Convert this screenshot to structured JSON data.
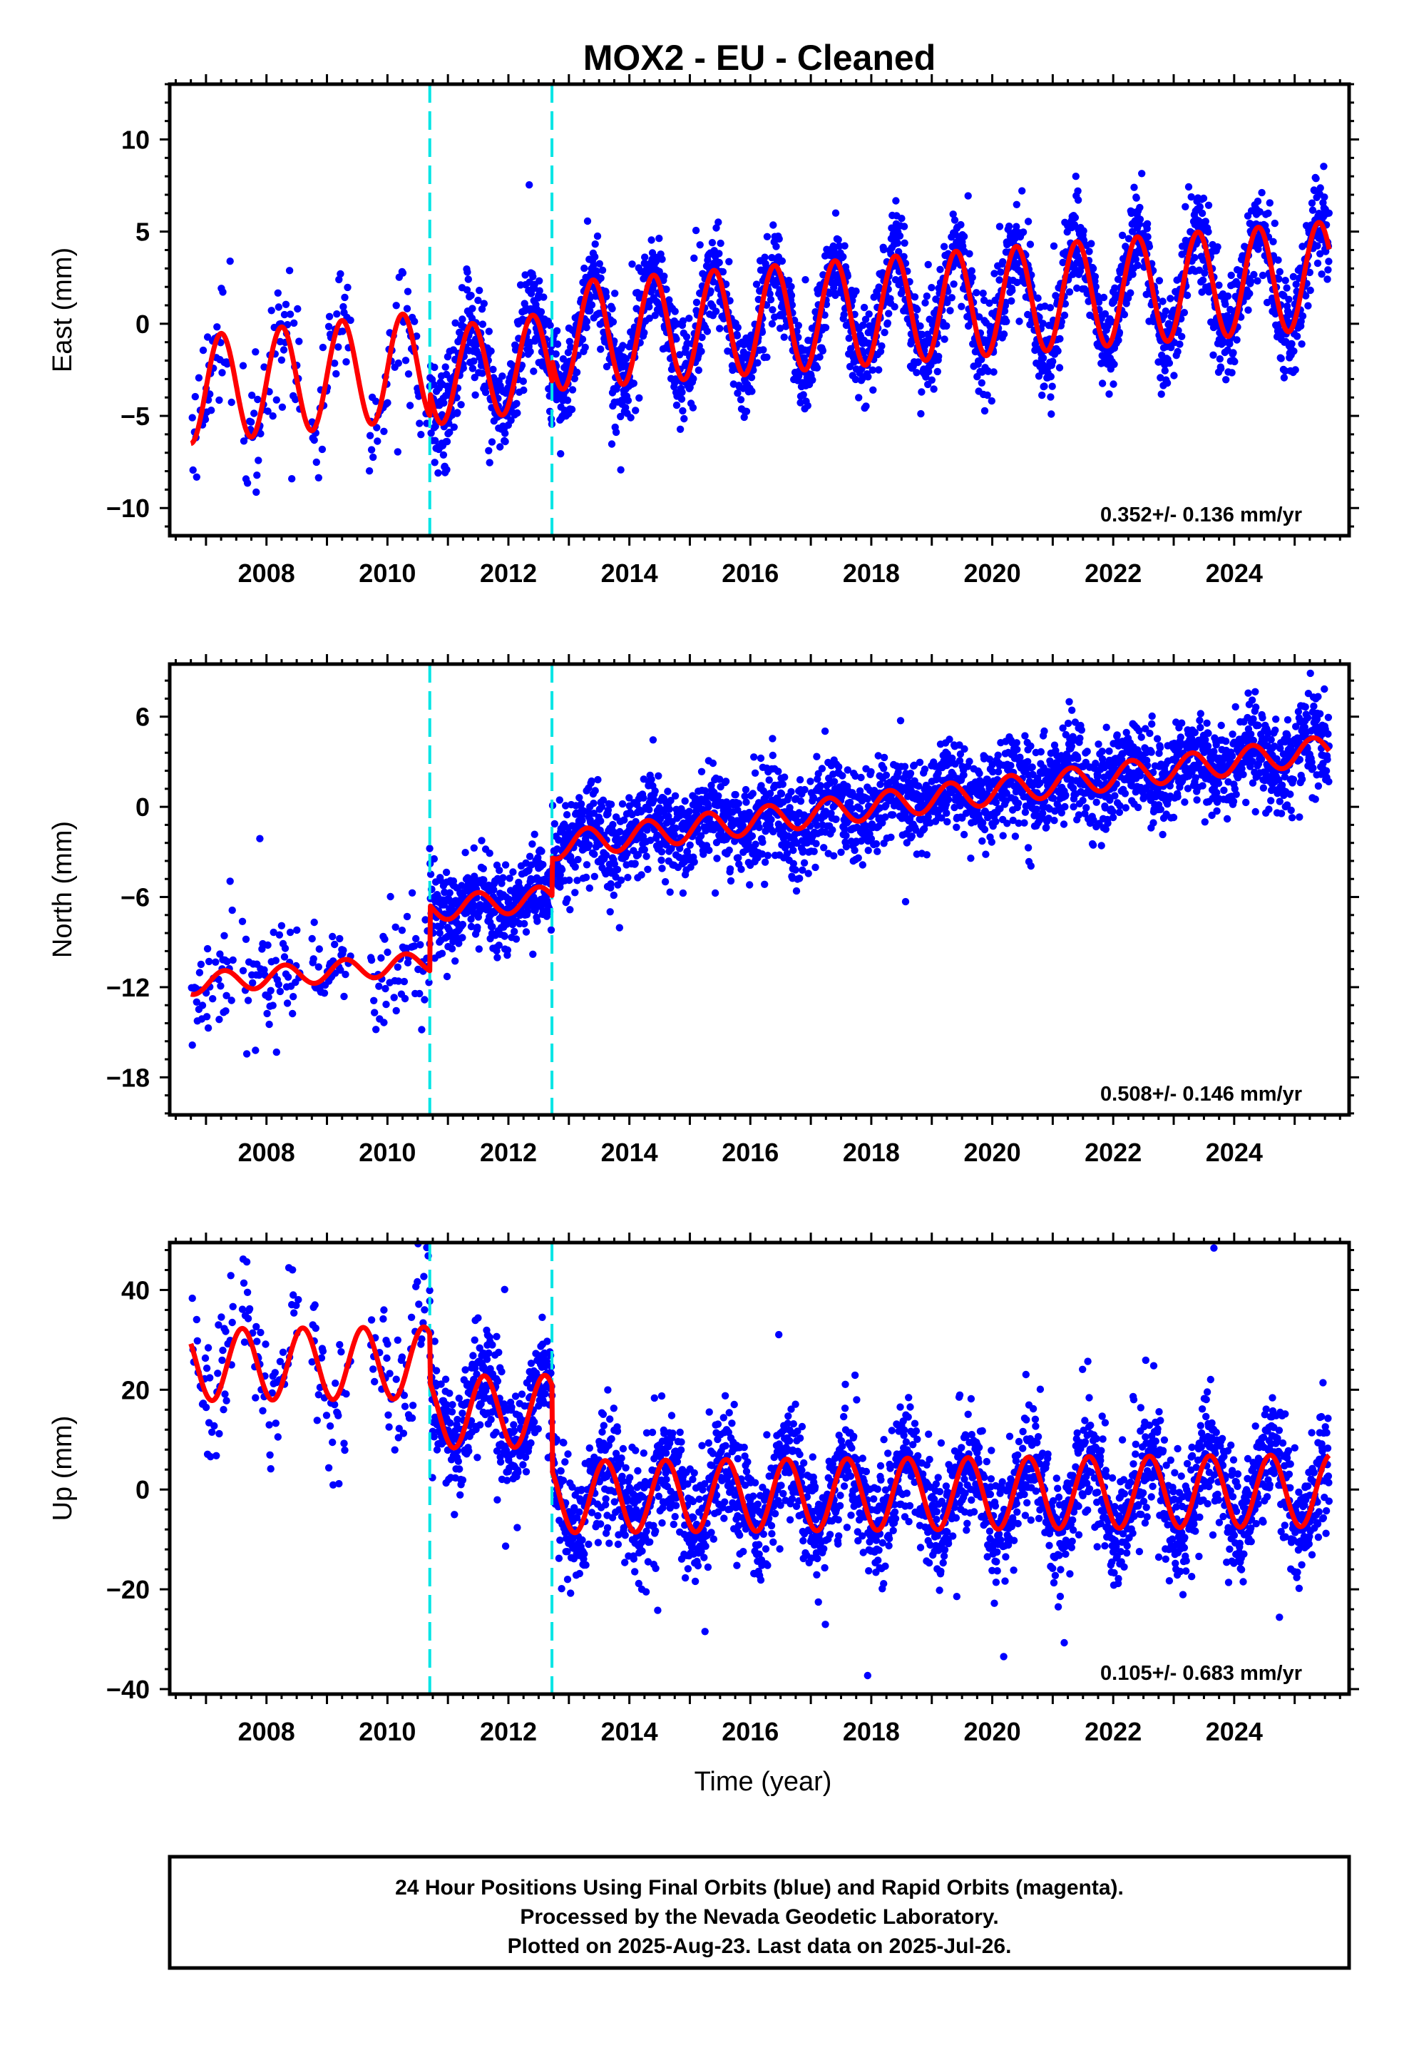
{
  "title": "MOX2  - EU - Cleaned",
  "colors": {
    "points": "#0000ff",
    "model": "#ff0000",
    "breaks": "#00e5e5",
    "frame": "#000000"
  },
  "footer": {
    "lines": [
      "24 Hour Positions Using Final Orbits (blue) and Rapid Orbits (magenta).",
      "Processed by the Nevada Geodetic Laboratory.",
      "Plotted on 2025-Aug-23. Last data on 2025-Jul-26."
    ]
  },
  "chart_data": [
    {
      "type": "scatter",
      "name": "east",
      "ylabel": "East (mm)",
      "xlabel": "",
      "xlim": [
        2006.4,
        2025.9
      ],
      "ylim": [
        -11.5,
        13
      ],
      "xticks": [
        2008,
        2010,
        2012,
        2014,
        2016,
        2018,
        2020,
        2022,
        2024
      ],
      "yticks": [
        -10,
        -5,
        0,
        5,
        10
      ],
      "rate_label": "0.352+/- 0.136 mm/yr",
      "breaks": [
        2010.7,
        2012.72
      ],
      "segments": [
        {
          "start": 2006.75,
          "end": 2010.7,
          "offset": -3.6,
          "slope": 0.35,
          "amplitude": 2.9,
          "phase_year": 2007.25,
          "gaps": [
            [
              2007.45,
              2007.6
            ],
            [
              2008.55,
              2008.75
            ],
            [
              2009.4,
              2009.7
            ]
          ]
        },
        {
          "start": 2010.7,
          "end": 2012.72,
          "offset": -2.9,
          "slope": 0.45,
          "amplitude": 2.6,
          "phase_year": 2011.4,
          "gaps": []
        },
        {
          "start": 2012.72,
          "end": 2025.57,
          "offset": -0.7,
          "slope": 0.26,
          "amplitude": 2.9,
          "phase_year": 2013.4,
          "gaps": []
        }
      ],
      "scatter_sd": 1.3,
      "model_values": [
        [
          2006.75,
          -7.0
        ],
        [
          2007.3,
          -1.0
        ],
        [
          2007.8,
          -6.9
        ],
        [
          2008.3,
          -0.7
        ],
        [
          2008.8,
          -6.5
        ],
        [
          2009.35,
          -0.4
        ],
        [
          2009.85,
          -6.3
        ],
        [
          2010.4,
          0.0
        ],
        [
          2010.75,
          -6.0
        ],
        [
          2011.4,
          -0.3
        ],
        [
          2011.9,
          -5.8
        ],
        [
          2012.4,
          0.0
        ],
        [
          2012.8,
          -4.0
        ],
        [
          2013.4,
          2.3
        ],
        [
          2014.4,
          2.6
        ],
        [
          2015.4,
          3.0
        ],
        [
          2016.4,
          3.2
        ],
        [
          2017.4,
          3.6
        ],
        [
          2018.4,
          4.0
        ],
        [
          2019.4,
          4.4
        ],
        [
          2020.4,
          4.7
        ],
        [
          2021.4,
          5.1
        ],
        [
          2022.4,
          5.4
        ],
        [
          2023.4,
          5.8
        ],
        [
          2024.4,
          6.1
        ],
        [
          2025.4,
          6.5
        ],
        [
          2024.9,
          0.3
        ],
        [
          2023.9,
          -0.1
        ]
      ]
    },
    {
      "type": "scatter",
      "name": "north",
      "ylabel": "North (mm)",
      "xlabel": "",
      "xlim": [
        2006.4,
        2025.9
      ],
      "ylim": [
        -20.5,
        9.5
      ],
      "xticks": [
        2008,
        2010,
        2012,
        2014,
        2016,
        2018,
        2020,
        2022,
        2024
      ],
      "yticks": [
        -18,
        -12,
        -6,
        0,
        6
      ],
      "rate_label": "0.508+/- 0.146 mm/yr",
      "breaks": [
        2010.7,
        2012.72
      ],
      "segments": [
        {
          "start": 2006.75,
          "end": 2010.7,
          "offset": -11.8,
          "slope": 0.37,
          "amplitude": 0.7,
          "phase_year": 2007.3,
          "gaps": [
            [
              2007.45,
              2007.6
            ],
            [
              2008.55,
              2008.75
            ],
            [
              2009.4,
              2009.7
            ]
          ]
        },
        {
          "start": 2010.7,
          "end": 2012.72,
          "offset": -6.8,
          "slope": 0.37,
          "amplitude": 0.8,
          "phase_year": 2011.5,
          "gaps": []
        },
        {
          "start": 2012.72,
          "end": 2025.57,
          "offset": -2.6,
          "slope": 0.5,
          "amplitude": 0.9,
          "phase_year": 2013.3,
          "gaps": []
        }
      ],
      "scatter_sd": 1.5,
      "model_values": [
        [
          2006.75,
          -11.8
        ],
        [
          2008.0,
          -11.4
        ],
        [
          2010.0,
          -10.5
        ],
        [
          2010.7,
          -10.2
        ],
        [
          2010.72,
          -7.0
        ],
        [
          2012.72,
          -6.2
        ],
        [
          2012.74,
          -2.6
        ],
        [
          2014.0,
          -2.0
        ],
        [
          2016.0,
          -1.0
        ],
        [
          2018.0,
          0.0
        ],
        [
          2020.0,
          1.0
        ],
        [
          2022.0,
          2.0
        ],
        [
          2024.0,
          3.0
        ],
        [
          2025.5,
          4.9
        ]
      ]
    },
    {
      "type": "scatter",
      "name": "up",
      "ylabel": "Up (mm)",
      "xlabel": "Time (year)",
      "xlim": [
        2006.4,
        2025.9
      ],
      "ylim": [
        -41,
        49.5
      ],
      "xticks": [
        2008,
        2010,
        2012,
        2014,
        2016,
        2018,
        2020,
        2022,
        2024
      ],
      "yticks": [
        -40,
        -20,
        0,
        20,
        40
      ],
      "rate_label": "0.105+/- 0.683 mm/yr",
      "breaks": [
        2010.7,
        2012.72
      ],
      "segments": [
        {
          "start": 2006.75,
          "end": 2010.7,
          "offset": 25.0,
          "slope": 0.1,
          "amplitude": 7.2,
          "phase_year": 2007.6,
          "gaps": [
            [
              2007.45,
              2007.6
            ],
            [
              2008.55,
              2008.75
            ],
            [
              2009.4,
              2009.7
            ]
          ]
        },
        {
          "start": 2010.7,
          "end": 2012.72,
          "offset": 15.5,
          "slope": 0.1,
          "amplitude": 7.2,
          "phase_year": 2011.6,
          "gaps": []
        },
        {
          "start": 2012.72,
          "end": 2025.57,
          "offset": -1.5,
          "slope": 0.1,
          "amplitude": 7.2,
          "phase_year": 2013.6,
          "gaps": []
        }
      ],
      "scatter_sd": 6.0,
      "model_values": [
        [
          2006.75,
          26.0
        ],
        [
          2007.6,
          32.0
        ],
        [
          2008.1,
          18.0
        ],
        [
          2010.6,
          32.0
        ],
        [
          2010.72,
          24.0
        ],
        [
          2011.6,
          22.5
        ],
        [
          2012.1,
          8.5
        ],
        [
          2012.6,
          22.5
        ],
        [
          2012.74,
          2.0
        ],
        [
          2013.6,
          5.5
        ],
        [
          2014.1,
          -8.5
        ],
        [
          2025.5,
          5.8
        ]
      ]
    }
  ]
}
